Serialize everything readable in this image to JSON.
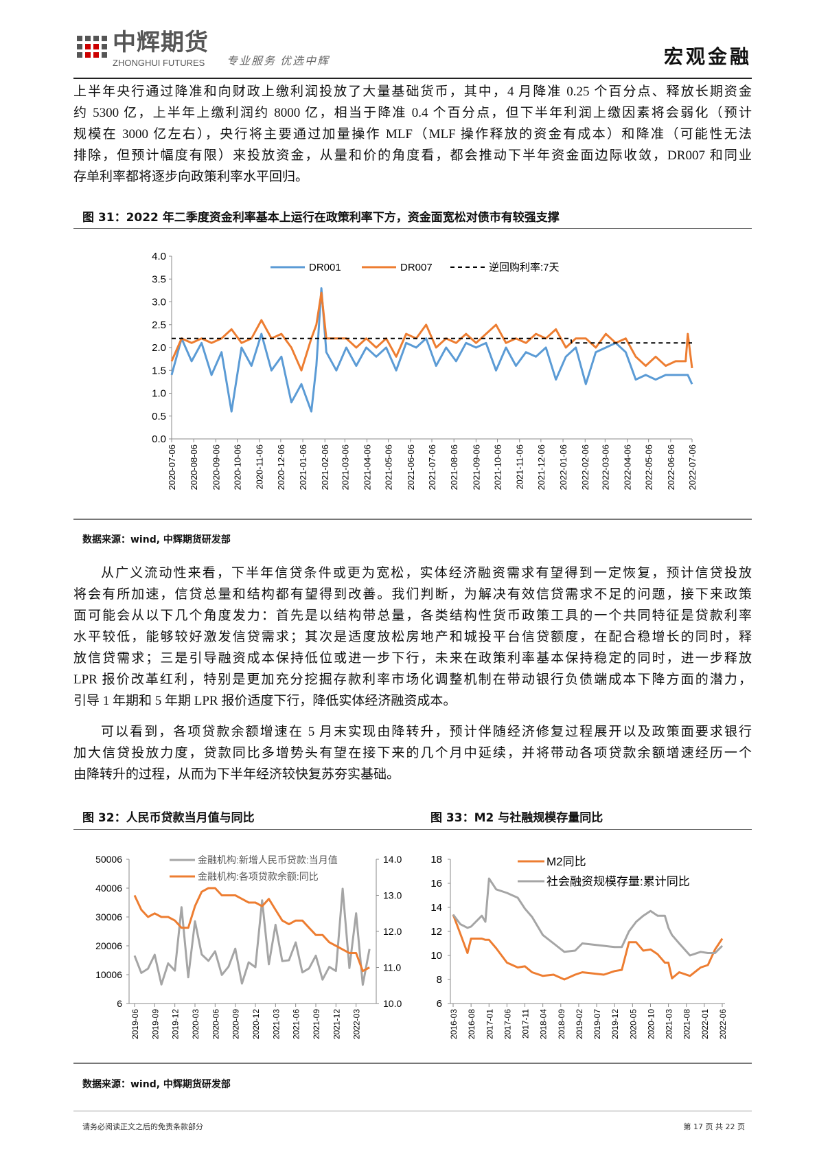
{
  "header": {
    "brand_cn": "中辉期货",
    "brand_en": "ZHONGHUI FUTURES",
    "slogan": "专业服务 优选中辉",
    "section": "宏观金融"
  },
  "paragraphs": [
    {
      "lines": [
        "上半年央行通过降准和向财政上缴利润投放了大量基础货币，其中，4 月降准 0.25 个百分点、释放长期资金",
        "约 5300 亿，上半年上缴利润约 8000 亿，相当于降准 0.4 个百分点，但下半年利润上缴因素将会弱化（预计",
        "规模在 3000 亿左右），央行将主要通过加量操作 MLF（MLF 操作释放的资金有成本）和降准（可能性无法",
        "排除，但预计幅度有限）来投放资金，从量和价的角度看，都会推动下半年资金面边际收敛，DR007 和同业",
        "存单利率都将逐步向政策利率水平回归。"
      ]
    },
    {
      "lines": [
        "从广义流动性来看，下半年信贷条件或更为宽松，实体经济融资需求有望得到一定恢复，预计信贷投放",
        "将会有所加速，信贷总量和结构都有望得到改善。我们判断，为解决有效信贷需求不足的问题，接下来政策",
        "面可能会从以下几个角度发力：首先是以结构带总量，各类结构性货币政策工具的一个共同特征是贷款利率",
        "水平较低，能够较好激发信贷需求；其次是适度放松房地产和城投平台信贷额度，在配合稳增长的同时，释",
        "放信贷需求；三是引导融资成本保持低位或进一步下行，未来在政策利率基本保持稳定的同时，进一步释放",
        "LPR 报价改革红利，特别是更加充分挖掘存款利率市场化调整机制在带动银行负债端成本下降方面的潜力，",
        "引导 1 年期和 5 年期 LPR 报价适度下行，降低实体经济融资成本。"
      ]
    },
    {
      "lines": [
        "可以看到，各项贷款余额增速在 5 月末实现由降转升，预计伴随经济修复过程展开以及政策面要求银行",
        "加大信贷投放力度，贷款同比多增势头有望在接下来的几个月中延续，并将带动各项贷款余额增速经历一个",
        "由降转升的过程，从而为下半年经济较快复苏夯实基础。"
      ]
    }
  ],
  "figures": {
    "fig31_title": "图 31：2022 年二季度资金利率基本上运行在政策利率下方，资金面宽松对债市有较强支撑",
    "fig32_title": "图 32：人民币贷款当月值与同比",
    "fig33_title": "图 33：M2 与社融规模存量同比",
    "source_1": "数据来源：wind, 中辉期货研发部",
    "source_2": "数据来源：wind, 中辉期货研发部"
  },
  "footer": {
    "disclaimer": "请务必阅读正文之后的免责条款部分",
    "page": "第 17 页 共 22 页"
  },
  "colors": {
    "blue": "#5B9BD5",
    "orange": "#ED7D31",
    "gray": "#A5A5A5",
    "black": "#000000"
  },
  "chart_data": [
    {
      "type": "line",
      "ylim": [
        0,
        4
      ],
      "yticks": [
        "0.0",
        "0.5",
        "1.0",
        "1.5",
        "2.0",
        "2.5",
        "3.0",
        "3.5",
        "4.0"
      ],
      "xticks": [
        "2020-07-06",
        "2020-08-06",
        "2020-09-06",
        "2020-10-06",
        "2020-11-06",
        "2020-12-06",
        "2021-01-06",
        "2021-02-06",
        "2021-03-06",
        "2021-04-06",
        "2021-05-06",
        "2021-06-06",
        "2021-07-06",
        "2021-08-06",
        "2021-09-06",
        "2021-10-06",
        "2021-11-06",
        "2021-12-06",
        "2022-01-06",
        "2022-02-06",
        "2022-03-06",
        "2022-04-06",
        "2022-05-06",
        "2022-06-06",
        "2022-07-06"
      ],
      "legend": "top",
      "series": [
        {
          "name": "DR001",
          "color": "#5B9BD5",
          "points": [
            [
              "2020-07-06",
              1.4
            ],
            [
              "2020-07-20",
              2.2
            ],
            [
              "2020-08-03",
              1.7
            ],
            [
              "2020-08-17",
              2.1
            ],
            [
              "2020-08-31",
              1.4
            ],
            [
              "2020-09-14",
              1.9
            ],
            [
              "2020-09-28",
              0.6
            ],
            [
              "2020-10-12",
              2.0
            ],
            [
              "2020-10-26",
              1.6
            ],
            [
              "2020-11-09",
              2.3
            ],
            [
              "2020-11-23",
              1.5
            ],
            [
              "2020-12-07",
              1.8
            ],
            [
              "2020-12-21",
              0.8
            ],
            [
              "2021-01-04",
              1.2
            ],
            [
              "2021-01-18",
              0.6
            ],
            [
              "2021-01-25",
              1.6
            ],
            [
              "2021-02-01",
              3.3
            ],
            [
              "2021-02-08",
              1.9
            ],
            [
              "2021-02-22",
              1.5
            ],
            [
              "2021-03-08",
              2.0
            ],
            [
              "2021-03-22",
              1.6
            ],
            [
              "2021-04-05",
              2.0
            ],
            [
              "2021-04-19",
              1.8
            ],
            [
              "2021-05-03",
              2.0
            ],
            [
              "2021-05-17",
              1.5
            ],
            [
              "2021-05-31",
              2.1
            ],
            [
              "2021-06-14",
              2.0
            ],
            [
              "2021-06-28",
              2.2
            ],
            [
              "2021-07-12",
              1.6
            ],
            [
              "2021-07-26",
              2.0
            ],
            [
              "2021-08-09",
              1.7
            ],
            [
              "2021-08-23",
              2.1
            ],
            [
              "2021-09-06",
              2.0
            ],
            [
              "2021-09-20",
              2.1
            ],
            [
              "2021-10-04",
              1.5
            ],
            [
              "2021-10-18",
              2.0
            ],
            [
              "2021-11-01",
              1.6
            ],
            [
              "2021-11-15",
              1.9
            ],
            [
              "2021-11-29",
              1.8
            ],
            [
              "2021-12-13",
              2.0
            ],
            [
              "2021-12-27",
              1.3
            ],
            [
              "2022-01-10",
              1.8
            ],
            [
              "2022-01-24",
              2.0
            ],
            [
              "2022-02-07",
              1.2
            ],
            [
              "2022-02-21",
              1.9
            ],
            [
              "2022-03-07",
              2.0
            ],
            [
              "2022-03-21",
              2.1
            ],
            [
              "2022-04-04",
              1.9
            ],
            [
              "2022-04-18",
              1.3
            ],
            [
              "2022-05-02",
              1.4
            ],
            [
              "2022-05-16",
              1.3
            ],
            [
              "2022-05-30",
              1.4
            ],
            [
              "2022-06-13",
              1.4
            ],
            [
              "2022-06-27",
              1.4
            ],
            [
              "2022-06-30",
              1.4
            ],
            [
              "2022-07-06",
              1.2
            ]
          ]
        },
        {
          "name": "DR007",
          "color": "#ED7D31",
          "points": [
            [
              "2020-07-06",
              1.7
            ],
            [
              "2020-07-20",
              2.2
            ],
            [
              "2020-08-03",
              2.1
            ],
            [
              "2020-08-17",
              2.2
            ],
            [
              "2020-08-31",
              2.1
            ],
            [
              "2020-09-14",
              2.2
            ],
            [
              "2020-09-28",
              2.4
            ],
            [
              "2020-10-12",
              2.1
            ],
            [
              "2020-10-26",
              2.2
            ],
            [
              "2020-11-09",
              2.6
            ],
            [
              "2020-11-23",
              2.2
            ],
            [
              "2020-12-07",
              2.3
            ],
            [
              "2020-12-21",
              2.0
            ],
            [
              "2021-01-04",
              1.5
            ],
            [
              "2021-01-18",
              2.2
            ],
            [
              "2021-01-25",
              2.5
            ],
            [
              "2021-02-01",
              3.2
            ],
            [
              "2021-02-08",
              2.2
            ],
            [
              "2021-02-22",
              2.2
            ],
            [
              "2021-03-08",
              2.2
            ],
            [
              "2021-03-22",
              2.0
            ],
            [
              "2021-04-05",
              2.2
            ],
            [
              "2021-04-19",
              2.0
            ],
            [
              "2021-05-03",
              2.2
            ],
            [
              "2021-05-17",
              1.8
            ],
            [
              "2021-05-31",
              2.3
            ],
            [
              "2021-06-14",
              2.2
            ],
            [
              "2021-06-28",
              2.5
            ],
            [
              "2021-07-12",
              2.0
            ],
            [
              "2021-07-26",
              2.2
            ],
            [
              "2021-08-09",
              2.1
            ],
            [
              "2021-08-23",
              2.3
            ],
            [
              "2021-09-06",
              2.1
            ],
            [
              "2021-09-20",
              2.3
            ],
            [
              "2021-10-04",
              2.5
            ],
            [
              "2021-10-18",
              2.1
            ],
            [
              "2021-11-01",
              2.2
            ],
            [
              "2021-11-15",
              2.1
            ],
            [
              "2021-11-29",
              2.3
            ],
            [
              "2021-12-13",
              2.2
            ],
            [
              "2021-12-27",
              2.4
            ],
            [
              "2022-01-10",
              2.0
            ],
            [
              "2022-01-24",
              2.2
            ],
            [
              "2022-02-07",
              2.2
            ],
            [
              "2022-02-21",
              2.0
            ],
            [
              "2022-03-07",
              2.3
            ],
            [
              "2022-03-21",
              2.1
            ],
            [
              "2022-04-04",
              2.2
            ],
            [
              "2022-04-18",
              1.8
            ],
            [
              "2022-05-02",
              1.6
            ],
            [
              "2022-05-16",
              1.8
            ],
            [
              "2022-05-30",
              1.6
            ],
            [
              "2022-06-13",
              1.7
            ],
            [
              "2022-06-27",
              1.7
            ],
            [
              "2022-06-30",
              2.3
            ],
            [
              "2022-07-06",
              1.55
            ]
          ]
        },
        {
          "name": "逆回购利率:7天",
          "color": "#000000",
          "dashed": true,
          "points": [
            [
              "2020-07-06",
              2.2
            ],
            [
              "2022-01-17",
              2.2
            ],
            [
              "2022-01-18",
              2.1
            ],
            [
              "2022-07-06",
              2.1
            ]
          ]
        }
      ]
    },
    {
      "type": "line",
      "dual_axis": true,
      "ylim_left": [
        6,
        50006
      ],
      "yticks_left": [
        "6",
        "10006",
        "20006",
        "30006",
        "40006",
        "50006"
      ],
      "ylim_right": [
        10,
        14
      ],
      "yticks_right": [
        "10.0",
        "11.0",
        "12.0",
        "13.0",
        "14.0"
      ],
      "xticks": [
        "2019-06",
        "2019-09",
        "2019-12",
        "2020-03",
        "2020-06",
        "2020-09",
        "2020-12",
        "2021-03",
        "2021-06",
        "2021-09",
        "2021-12",
        "2022-03"
      ],
      "x_start": "2019-06",
      "legend": "top",
      "series": [
        {
          "name": "金融机构:新增人民币贷款:当月值",
          "axis": "left",
          "color": "#A5A5A5",
          "values": [
            16600,
            10600,
            12100,
            16900,
            6600,
            13900,
            11400,
            33400,
            9100,
            28500,
            17000,
            14800,
            18100,
            9900,
            12800,
            19000,
            6900,
            14300,
            12600,
            35800,
            13600,
            27300,
            14700,
            15000,
            21200,
            10800,
            12200,
            16600,
            8300,
            12700,
            11300,
            39800,
            12300,
            31300,
            6500,
            18900
          ]
        },
        {
          "name": "金融机构:各项贷款余额:同比",
          "axis": "right",
          "color": "#ED7D31",
          "values": [
            13.0,
            12.6,
            12.4,
            12.5,
            12.4,
            12.4,
            12.3,
            12.1,
            12.1,
            12.7,
            13.1,
            13.2,
            13.2,
            13.0,
            13.0,
            13.0,
            12.9,
            12.8,
            12.8,
            12.7,
            12.9,
            12.6,
            12.3,
            12.2,
            12.3,
            12.3,
            12.1,
            11.9,
            11.9,
            11.7,
            11.6,
            11.5,
            11.4,
            11.4,
            10.9,
            11.0
          ]
        }
      ]
    },
    {
      "type": "line",
      "ylim": [
        6,
        18
      ],
      "yticks": [
        "6",
        "8",
        "10",
        "12",
        "14",
        "16",
        "18"
      ],
      "xticks": [
        "2016-03",
        "2016-08",
        "2017-01",
        "2017-06",
        "2017-11",
        "2018-04",
        "2018-09",
        "2019-02",
        "2019-07",
        "2019-12",
        "2020-05",
        "2020-10",
        "2021-03",
        "2021-08",
        "2022-01",
        "2022-06"
      ],
      "legend": "top-left",
      "series": [
        {
          "name": "M2同比",
          "color": "#ED7D31",
          "points": [
            [
              "2016-03",
              13.4
            ],
            [
              "2016-05",
              11.8
            ],
            [
              "2016-07",
              10.2
            ],
            [
              "2016-08",
              11.4
            ],
            [
              "2016-11",
              11.4
            ],
            [
              "2016-12",
              11.3
            ],
            [
              "2017-01",
              11.3
            ],
            [
              "2017-03",
              10.6
            ],
            [
              "2017-06",
              9.4
            ],
            [
              "2017-09",
              9.0
            ],
            [
              "2017-11",
              9.1
            ],
            [
              "2018-01",
              8.6
            ],
            [
              "2018-04",
              8.3
            ],
            [
              "2018-07",
              8.4
            ],
            [
              "2018-10",
              8.0
            ],
            [
              "2019-01",
              8.4
            ],
            [
              "2019-03",
              8.6
            ],
            [
              "2019-06",
              8.5
            ],
            [
              "2019-09",
              8.4
            ],
            [
              "2019-12",
              8.7
            ],
            [
              "2020-02",
              8.8
            ],
            [
              "2020-04",
              11.1
            ],
            [
              "2020-06",
              11.1
            ],
            [
              "2020-08",
              10.4
            ],
            [
              "2020-10",
              10.5
            ],
            [
              "2020-12",
              10.1
            ],
            [
              "2021-02",
              9.4
            ],
            [
              "2021-03",
              9.4
            ],
            [
              "2021-04",
              8.1
            ],
            [
              "2021-06",
              8.6
            ],
            [
              "2021-09",
              8.3
            ],
            [
              "2021-12",
              9.0
            ],
            [
              "2022-02",
              9.2
            ],
            [
              "2022-04",
              10.5
            ],
            [
              "2022-06",
              11.4
            ]
          ]
        },
        {
          "name": "社会融资规模存量:累计同比",
          "color": "#A5A5A5",
          "points": [
            [
              "2016-03",
              13.4
            ],
            [
              "2016-05",
              12.6
            ],
            [
              "2016-07",
              12.3
            ],
            [
              "2016-08",
              12.4
            ],
            [
              "2016-11",
              13.3
            ],
            [
              "2016-12",
              12.8
            ],
            [
              "2017-01",
              16.4
            ],
            [
              "2017-03",
              15.5
            ],
            [
              "2017-06",
              15.2
            ],
            [
              "2017-09",
              14.8
            ],
            [
              "2017-11",
              13.9
            ],
            [
              "2018-01",
              13.2
            ],
            [
              "2018-04",
              11.7
            ],
            [
              "2018-07",
              11.0
            ],
            [
              "2018-10",
              10.3
            ],
            [
              "2019-01",
              10.4
            ],
            [
              "2019-03",
              11.0
            ],
            [
              "2019-06",
              10.9
            ],
            [
              "2019-09",
              10.8
            ],
            [
              "2019-12",
              10.7
            ],
            [
              "2020-02",
              10.7
            ],
            [
              "2020-04",
              12.0
            ],
            [
              "2020-06",
              12.8
            ],
            [
              "2020-08",
              13.3
            ],
            [
              "2020-10",
              13.7
            ],
            [
              "2020-12",
              13.3
            ],
            [
              "2021-02",
              13.3
            ],
            [
              "2021-03",
              12.3
            ],
            [
              "2021-04",
              11.7
            ],
            [
              "2021-06",
              11.0
            ],
            [
              "2021-09",
              10.0
            ],
            [
              "2021-12",
              10.3
            ],
            [
              "2022-02",
              10.2
            ],
            [
              "2022-04",
              10.2
            ],
            [
              "2022-06",
              10.8
            ]
          ]
        }
      ]
    }
  ]
}
